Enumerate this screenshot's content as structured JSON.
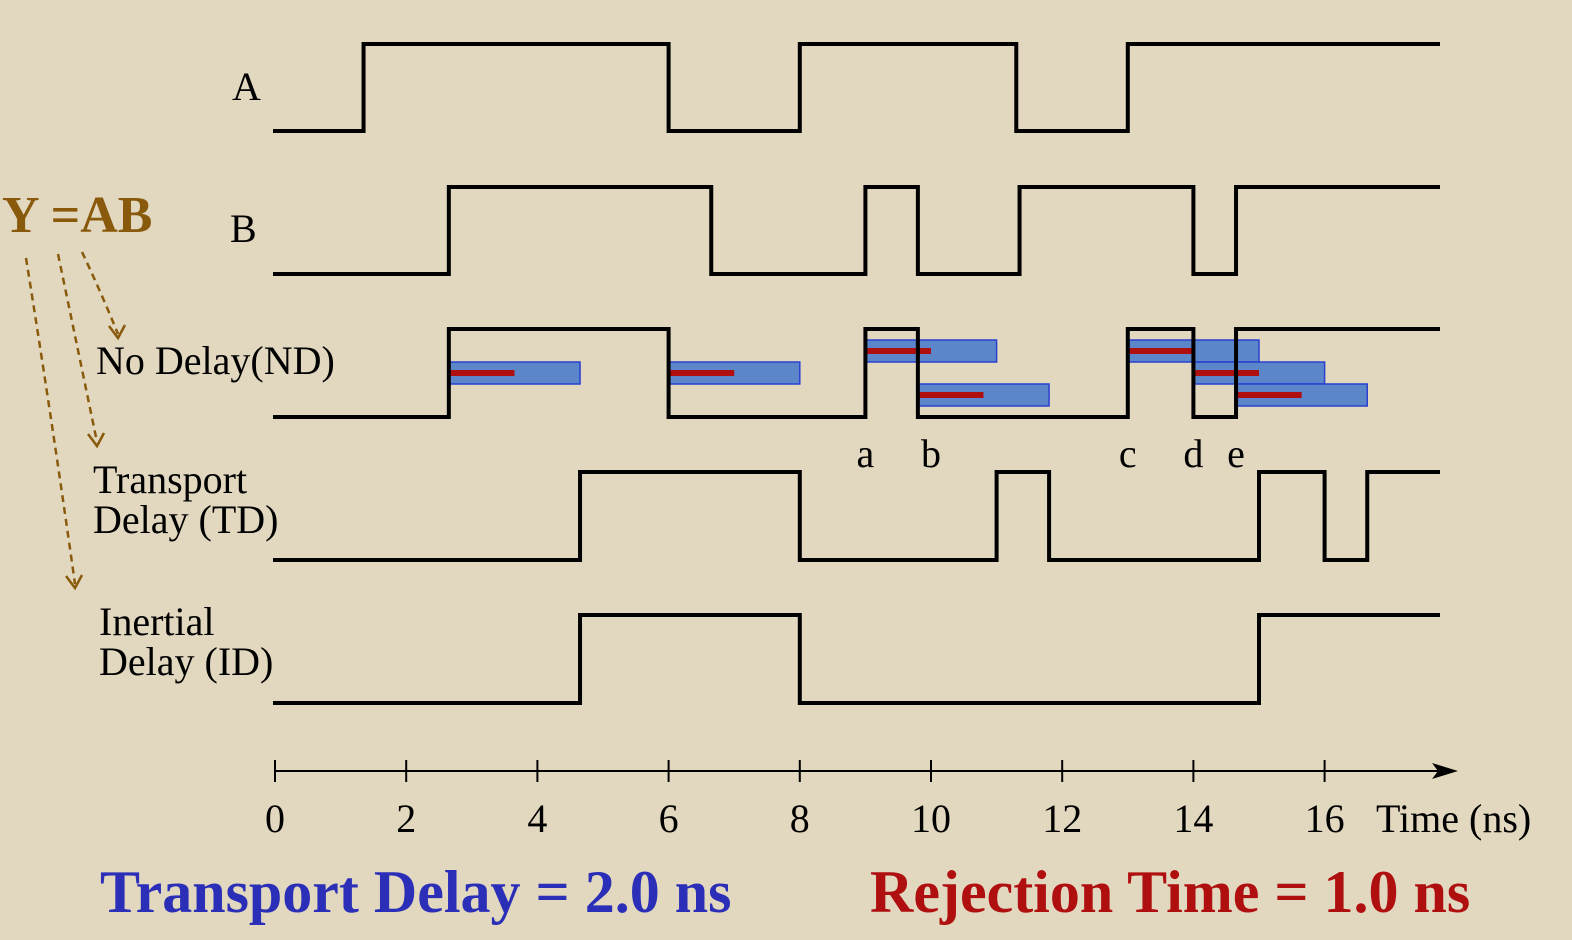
{
  "equation": {
    "label": "Y =AB",
    "color": "#8a5a0c"
  },
  "signals": [
    {
      "id": "A",
      "lines": [
        "A"
      ],
      "edges": [
        1.35,
        6,
        8,
        11.3,
        13
      ]
    },
    {
      "id": "B",
      "lines": [
        "B"
      ],
      "edges": [
        2.65,
        6.65,
        9,
        9.8,
        11.35,
        14,
        14.65
      ]
    },
    {
      "id": "ND",
      "lines": [
        "No Delay(ND)"
      ],
      "edges": [
        2.65,
        6,
        9,
        9.8,
        13,
        14,
        14.65
      ]
    },
    {
      "id": "TD",
      "lines": [
        "Transport",
        "Delay (TD)"
      ],
      "edges": [
        4.65,
        8,
        11,
        11.8,
        15,
        16,
        16.65
      ]
    },
    {
      "id": "ID",
      "lines": [
        "Inertial",
        "Delay (ID)"
      ],
      "edges": [
        4.65,
        8,
        15
      ]
    }
  ],
  "rejection_windows": [
    {
      "t": 2.65,
      "row": 1
    },
    {
      "t": 6,
      "row": 1
    },
    {
      "t": 9,
      "row": 0
    },
    {
      "t": 9.8,
      "row": 2
    },
    {
      "t": 13,
      "row": 0
    },
    {
      "t": 14,
      "row": 1
    },
    {
      "t": 14.65,
      "row": 2
    }
  ],
  "transport_delay_ns": 2.0,
  "rejection_time_ns": 1.0,
  "window_color": "#5b86c9",
  "rejection_color": "#b00f0f",
  "event_markers": [
    {
      "label": "a",
      "t": 9
    },
    {
      "label": "b",
      "t": 10
    },
    {
      "label": "c",
      "t": 13
    },
    {
      "label": "d",
      "t": 14
    },
    {
      "label": "e",
      "t": 14.65
    }
  ],
  "time_axis": {
    "ticks": [
      "0",
      "2",
      "4",
      "6",
      "8",
      "10",
      "12",
      "14",
      "16"
    ],
    "label": "Time (ns)",
    "max": 18
  },
  "footer": {
    "transport": {
      "text": "Transport Delay = 2.0 ns",
      "color": "#2b2fb8"
    },
    "rejection": {
      "text": "Rejection Time = 1.0 ns",
      "color": "#b00f0f"
    }
  }
}
